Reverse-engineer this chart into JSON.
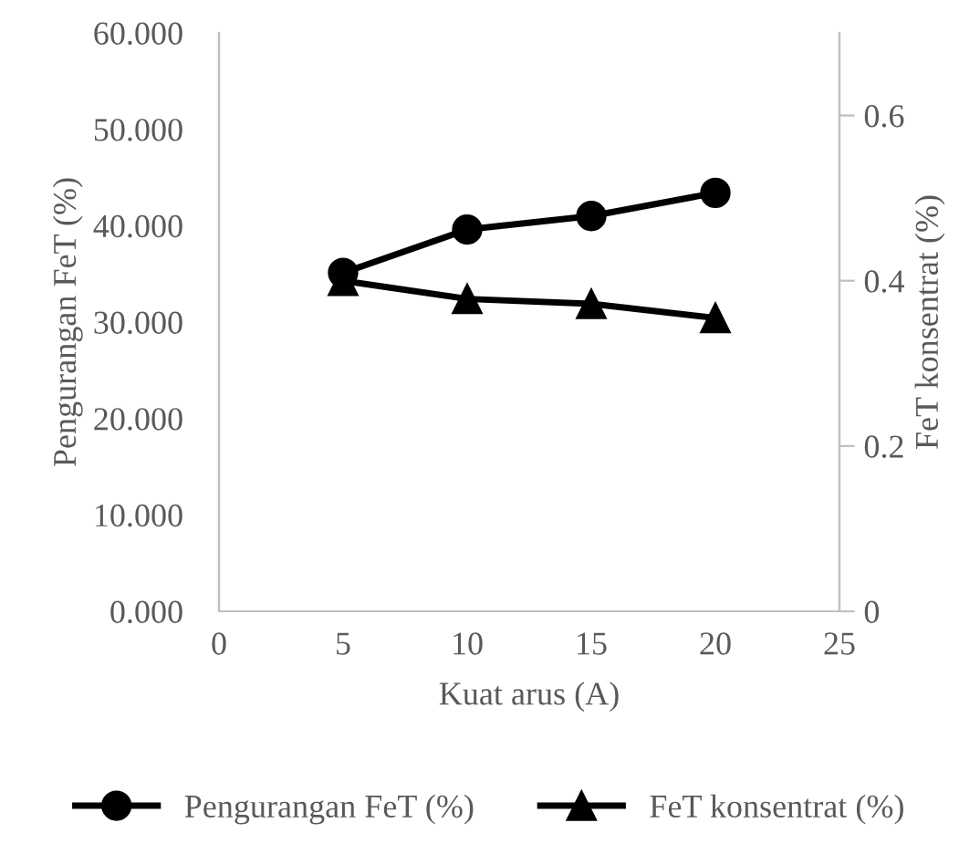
{
  "chart_data": {
    "type": "line",
    "xlabel": "Kuat arus (A)",
    "ylabel": "Pengurangan FeT (%)",
    "y2label": "FeT konsentrat (%)",
    "x": [
      5,
      10,
      15,
      20
    ],
    "series": [
      {
        "name": "Pengurangan FeT (%)",
        "color": "#000000",
        "marker": "circle",
        "values": [
          35.1,
          39.6,
          41.0,
          43.4
        ]
      },
      {
        "name": "FeT konsentrat (%)",
        "color": "#000000",
        "marker": "triangle",
        "axis": "y2",
        "values": [
          0.4,
          0.378,
          0.372,
          0.355
        ]
      }
    ],
    "xlim": [
      0,
      25
    ],
    "xticks": [
      0,
      5,
      10,
      15,
      20,
      25
    ],
    "ylim": [
      0,
      60
    ],
    "yticks": [
      {
        "value": 0,
        "label": "0.000"
      },
      {
        "value": 10,
        "label": "10.000"
      },
      {
        "value": 20,
        "label": "20.000"
      },
      {
        "value": 30,
        "label": "30.000"
      },
      {
        "value": 40,
        "label": "40.000"
      },
      {
        "value": 50,
        "label": "50.000"
      },
      {
        "value": 60,
        "label": "60.000"
      }
    ],
    "y2lim": [
      0,
      0.7
    ],
    "y2ticks": [
      0,
      0.2,
      0.4,
      0.6
    ],
    "grid": false,
    "legend": "bottom",
    "line_style": "solid"
  }
}
